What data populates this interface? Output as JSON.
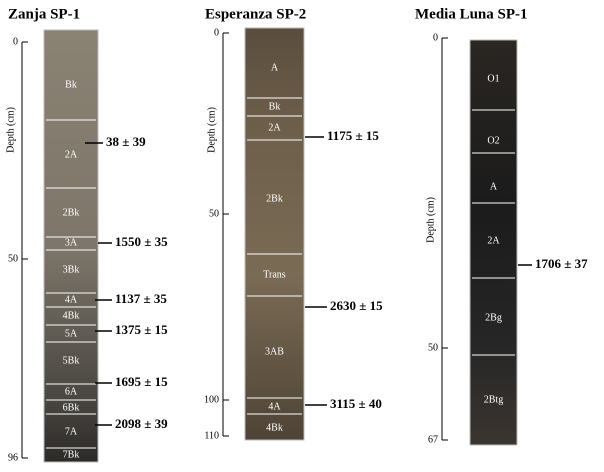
{
  "panels": [
    {
      "title": "Zanja SP-1",
      "axis_label": "Depth (cm)",
      "ticks": [
        "0",
        "50",
        "96"
      ],
      "horizons": [
        "Bk",
        "2A",
        "2Bk",
        "3A",
        "3Bk",
        "4A",
        "4Bk",
        "5A",
        "5Bk",
        "6A",
        "6Bk",
        "7A",
        "7Bk"
      ],
      "dates": [
        "38 ± 39",
        "1550 ± 35",
        "1137 ± 35",
        "1375 ± 15",
        "1695 ± 15",
        "2098 ± 39"
      ]
    },
    {
      "title": "Esperanza SP-2",
      "axis_label": "Depth (cm)",
      "ticks": [
        "0",
        "50",
        "100",
        "110"
      ],
      "horizons": [
        "A",
        "Bk",
        "2A",
        "2Bk",
        "Trans",
        "3AB",
        "4A",
        "4Bk"
      ],
      "dates": [
        "1175 ± 15",
        "2630 ± 15",
        "3115 ± 40"
      ]
    },
    {
      "title": "Media Luna SP-1",
      "axis_label": "Depth (cm)",
      "ticks": [
        "0",
        "50",
        "67"
      ],
      "horizons": [
        "O1",
        "O2",
        "A",
        "2A",
        "2Bg",
        "2Btg"
      ],
      "dates": [
        "1706 ± 37"
      ]
    }
  ]
}
